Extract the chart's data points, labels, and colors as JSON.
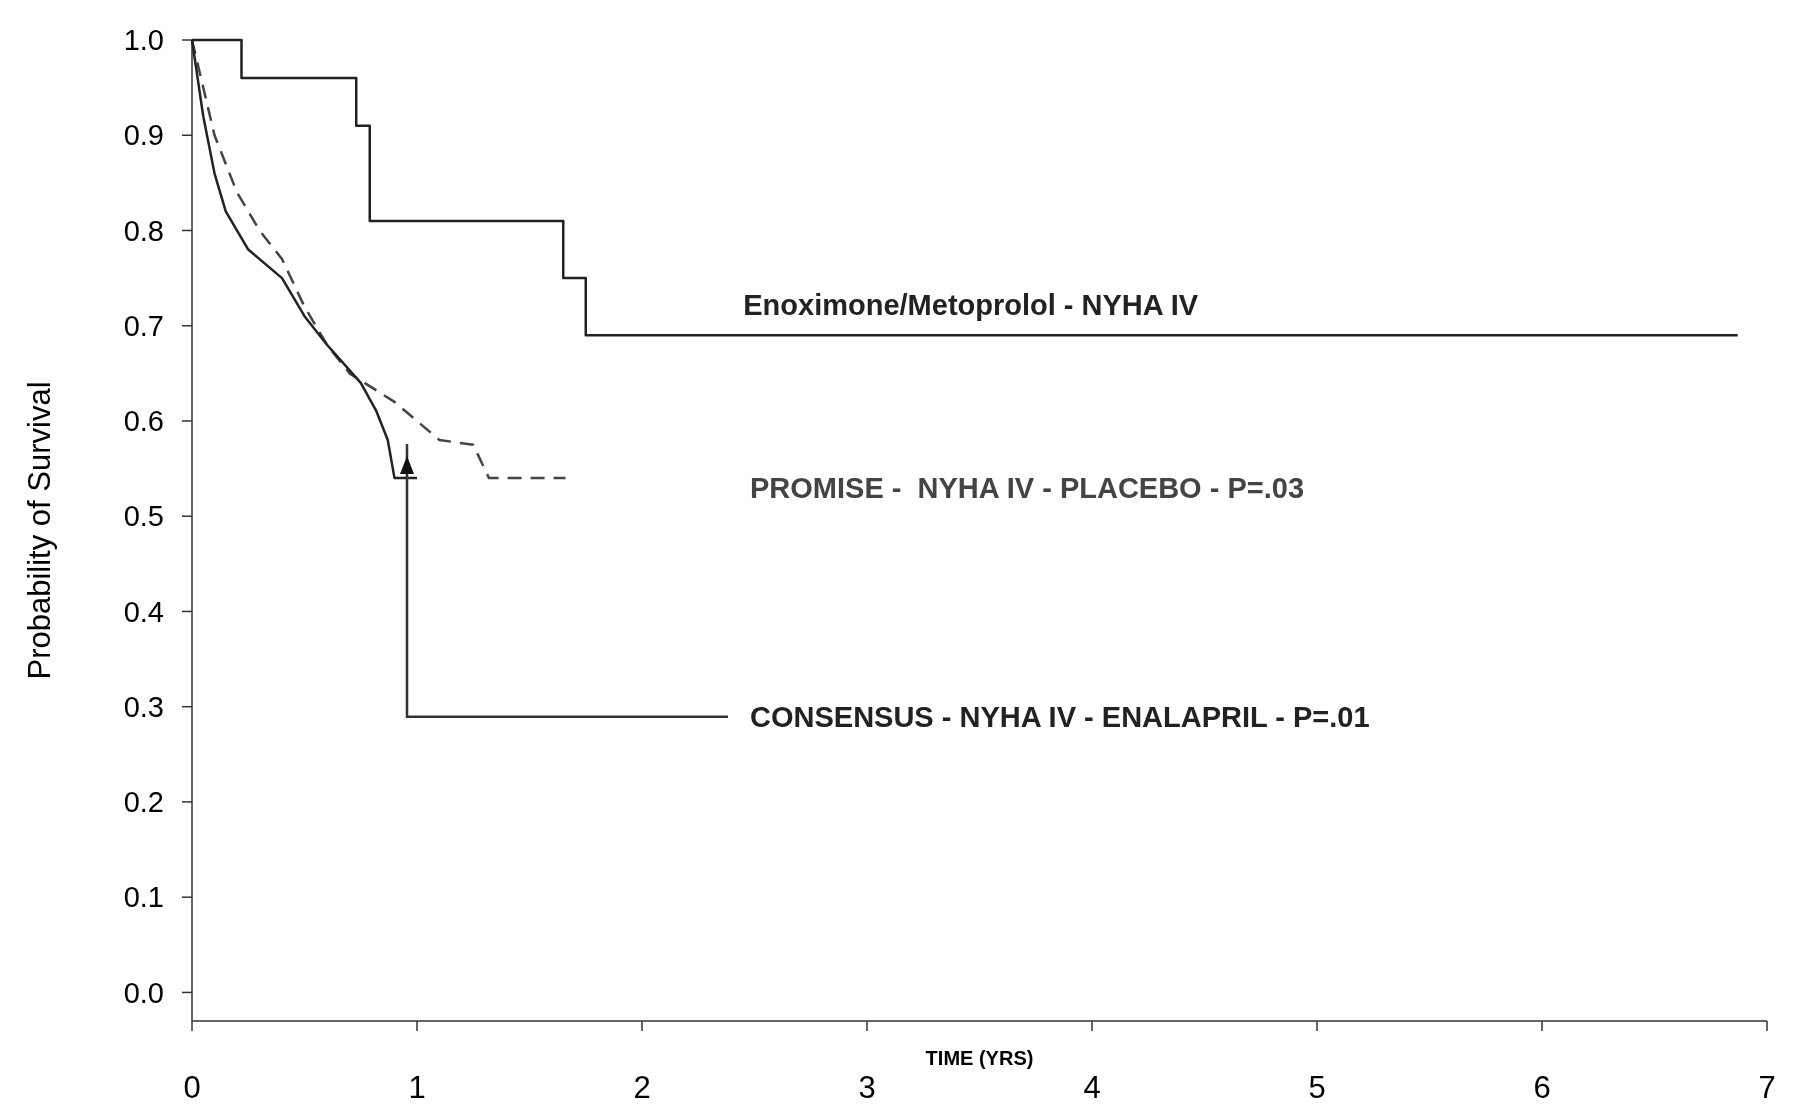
{
  "chart_data": {
    "type": "line",
    "xlabel": "TIME (YRS)",
    "ylabel": "Probability of Survival",
    "xlim": [
      0,
      7
    ],
    "ylim": [
      -0.03,
      1.0
    ],
    "xticks": [
      0,
      1,
      2,
      3,
      4,
      5,
      6,
      7
    ],
    "yticks": [
      {
        "value": 0,
        "label": "0.0"
      },
      {
        "value": 0.1,
        "label": "0.1"
      },
      {
        "value": 0.2,
        "label": "0.2"
      },
      {
        "value": 0.3,
        "label": "0.3"
      },
      {
        "value": 0.4,
        "label": "0.4"
      },
      {
        "value": 0.5,
        "label": "0.5"
      },
      {
        "value": 0.6,
        "label": "0.6"
      },
      {
        "value": 0.7,
        "label": "0.7"
      },
      {
        "value": 0.8,
        "label": "0.8"
      },
      {
        "value": 0.9,
        "label": "0.9"
      },
      {
        "value": 1,
        "label": "1.0"
      }
    ],
    "grid": false,
    "legend": false,
    "marker": "none",
    "series": [
      {
        "name": "Enoximone/Metoprolol - NYHA IV",
        "type": "step",
        "color": "#222222",
        "line_style": "solid",
        "x": [
          0,
          0.22,
          0.73,
          0.79,
          1.65,
          1.75,
          6.87
        ],
        "values": [
          1,
          0.96,
          0.91,
          0.81,
          0.75,
          0.69,
          0.69
        ]
      },
      {
        "name": "PROMISE -  NYHA IV - PLACEBO - P=.03",
        "color": "#444444",
        "line_style": "dashed",
        "x": [
          0,
          0.1,
          0.2,
          0.3,
          0.4,
          0.5,
          0.6,
          0.7,
          0.8,
          0.9,
          1.0,
          1.1,
          1.25,
          1.32,
          1.66
        ],
        "values": [
          1,
          0.9,
          0.84,
          0.8,
          0.77,
          0.72,
          0.68,
          0.65,
          0.635,
          0.62,
          0.6,
          0.58,
          0.575,
          0.54,
          0.54
        ]
      },
      {
        "name": "CONSENSUS - NYHA IV - ENALAPRIL - P=.01",
        "color": "#222222",
        "line_style": "solid",
        "x": [
          0,
          0.05,
          0.1,
          0.15,
          0.25,
          0.4,
          0.5,
          0.6,
          0.75,
          0.82,
          0.87,
          0.9,
          1.0
        ],
        "values": [
          1,
          0.92,
          0.86,
          0.82,
          0.78,
          0.75,
          0.71,
          0.68,
          0.64,
          0.61,
          0.58,
          0.54,
          0.54
        ]
      }
    ]
  }
}
